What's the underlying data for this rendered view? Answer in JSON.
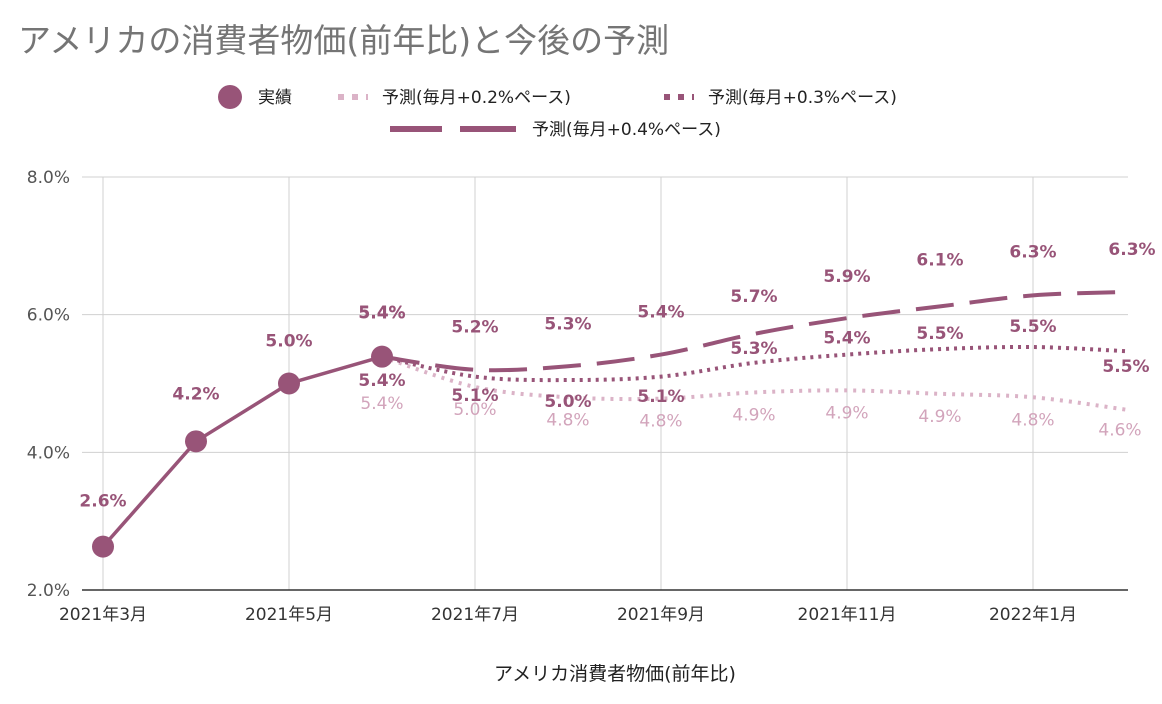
{
  "title": "アメリカの消費者物価(前年比)と今後の予測",
  "chart_data": {
    "type": "line",
    "xlabel": "アメリカ消費者物価(前年比)",
    "ylabel": "",
    "ylim": [
      2.0,
      8.0
    ],
    "yticks": [
      "2.0%",
      "4.0%",
      "6.0%",
      "8.0%"
    ],
    "yticks_values": [
      2,
      4,
      6,
      8
    ],
    "xticks": [
      "2021年3月",
      "2021年5月",
      "2021年7月",
      "2021年9月",
      "2021年11月",
      "2022年1月"
    ],
    "xticks_index": [
      0,
      2,
      4,
      6,
      8,
      10
    ],
    "n_points": 12,
    "grid": true,
    "legend_position": "top",
    "colors": {
      "actual": "#985478",
      "p02": "#dbb3c7",
      "p03": "#985478",
      "p04": "#985478"
    },
    "series": [
      {
        "name": "実績",
        "style": "solid-markers",
        "color": "#985478",
        "x_index": [
          0,
          1,
          2,
          3
        ],
        "values": [
          2.63,
          4.16,
          5.0,
          5.39
        ],
        "labels": [
          "2.6%",
          "4.2%",
          "5.0%",
          "5.4%"
        ]
      },
      {
        "name": "予測(毎月+0.2%ペース)",
        "style": "dotted-light",
        "color": "#dbb3c7",
        "x_index": [
          3,
          4,
          5,
          6,
          7,
          8,
          9,
          10,
          11
        ],
        "values": [
          5.39,
          4.95,
          4.8,
          4.78,
          4.87,
          4.9,
          4.85,
          4.8,
          4.62
        ],
        "labels": [
          "5.4%",
          "5.0%",
          "4.8%",
          "4.8%",
          "4.9%",
          "4.9%",
          "4.9%",
          "4.8%",
          "4.6%"
        ]
      },
      {
        "name": "予測(毎月+0.3%ペース)",
        "style": "dotted-dark",
        "color": "#985478",
        "x_index": [
          3,
          4,
          5,
          6,
          7,
          8,
          9,
          10,
          11
        ],
        "values": [
          5.39,
          5.1,
          5.05,
          5.1,
          5.3,
          5.42,
          5.5,
          5.53,
          5.47
        ],
        "labels": [
          "5.4%",
          "5.1%",
          "5.0%",
          "5.1%",
          "5.3%",
          "5.4%",
          "5.5%",
          "5.5%",
          "5.5%"
        ]
      },
      {
        "name": "予測(毎月+0.4%ペース)",
        "style": "dashed",
        "color": "#985478",
        "x_index": [
          3,
          4,
          5,
          6,
          7,
          8,
          9,
          10,
          11
        ],
        "values": [
          5.39,
          5.2,
          5.25,
          5.42,
          5.72,
          5.95,
          6.12,
          6.28,
          6.33
        ],
        "labels": [
          "5.4%",
          "5.2%",
          "5.3%",
          "5.4%",
          "5.7%",
          "5.9%",
          "6.1%",
          "6.3%",
          "6.3%"
        ]
      }
    ]
  }
}
